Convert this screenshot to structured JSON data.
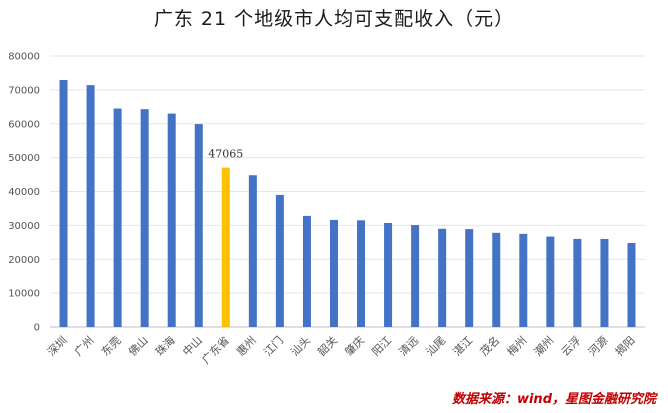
{
  "chart_data": {
    "type": "bar",
    "title": "广东 21 个地级市人均可支配收入（元）",
    "categories": [
      "深圳",
      "广州",
      "东莞",
      "佛山",
      "珠海",
      "中山",
      "广东省",
      "惠州",
      "江门",
      "汕头",
      "韶关",
      "肇庆",
      "阳江",
      "清远",
      "汕尾",
      "湛江",
      "茂名",
      "梅州",
      "潮州",
      "云浮",
      "河源",
      "揭阳"
    ],
    "values": [
      72900,
      71400,
      64500,
      64300,
      63000,
      59900,
      47065,
      44800,
      39000,
      32800,
      31600,
      31500,
      30700,
      30100,
      29000,
      28900,
      27800,
      27500,
      26700,
      26000,
      26000,
      24800
    ],
    "highlight_index": 6,
    "data_labels": [
      {
        "index": 6,
        "text": "47065"
      }
    ],
    "yticks": [
      "0",
      "10000",
      "20000",
      "30000",
      "40000",
      "50000",
      "60000",
      "70000",
      "80000"
    ],
    "ylim": [
      0,
      80000
    ],
    "grid": true,
    "legend": "none",
    "colors": {
      "bar": "#4472C4",
      "highlight": "#FFC000",
      "grid": "#e6e6e6"
    }
  },
  "source_note": "数据来源：wind，星图金融研究院"
}
